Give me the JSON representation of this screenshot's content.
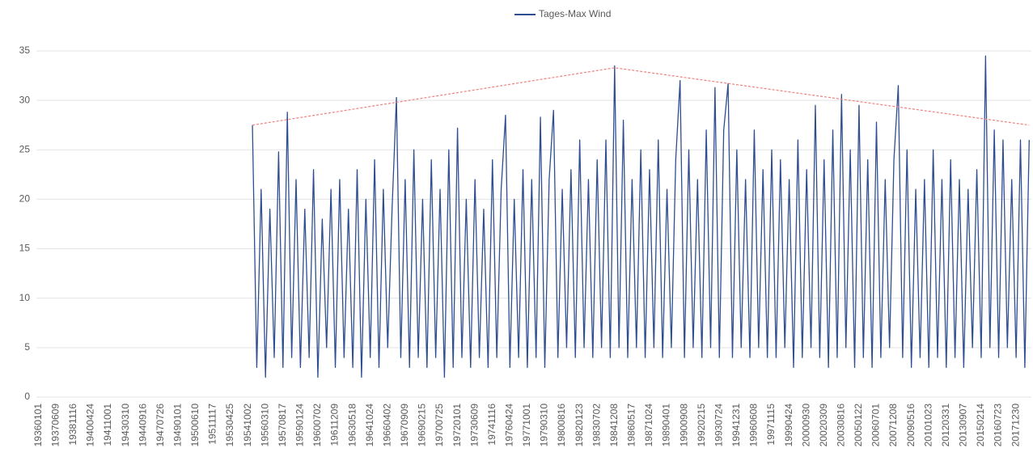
{
  "chart_data": {
    "type": "line",
    "categories": [
      "19360101",
      null,
      null,
      null,
      "19370609",
      null,
      null,
      null,
      "19381116",
      null,
      null,
      null,
      "19400424",
      null,
      null,
      null,
      "19411001",
      null,
      null,
      null,
      "19430310",
      null,
      null,
      null,
      "19440916",
      null,
      null,
      null,
      "19470726",
      null,
      null,
      null,
      "19490101",
      null,
      null,
      null,
      "19500610",
      null,
      null,
      null,
      "19511117",
      null,
      null,
      null,
      "19530425",
      null,
      null,
      null,
      "19541002",
      null,
      null,
      null,
      "19560310",
      null,
      null,
      null,
      "19570817",
      null,
      null,
      null,
      "19590124",
      null,
      null,
      null,
      "19600702",
      null,
      null,
      null,
      "19611209",
      null,
      null,
      null,
      "19630518",
      null,
      null,
      null,
      "19641024",
      null,
      null,
      null,
      "19660402",
      null,
      null,
      null,
      "19670909",
      null,
      null,
      null,
      "19690215",
      null,
      null,
      null,
      "19700725",
      null,
      null,
      null,
      "19720101",
      null,
      null,
      null,
      "19730609",
      null,
      null,
      null,
      "19741116",
      null,
      null,
      null,
      "19760424",
      null,
      null,
      null,
      "19771001",
      null,
      null,
      null,
      "19790310",
      null,
      null,
      null,
      "19800816",
      null,
      null,
      null,
      "19820123",
      null,
      null,
      null,
      "19830702",
      null,
      null,
      null,
      "19841208",
      null,
      null,
      null,
      "19860517",
      null,
      null,
      null,
      "19871024",
      null,
      null,
      null,
      "19890401",
      null,
      null,
      null,
      "19900908",
      null,
      null,
      null,
      "19920215",
      null,
      null,
      null,
      "19930724",
      null,
      null,
      null,
      "19941231",
      null,
      null,
      null,
      "19960608",
      null,
      null,
      null,
      "19971115",
      null,
      null,
      null,
      "19990424",
      null,
      null,
      null,
      "20000930",
      null,
      null,
      null,
      "20020309",
      null,
      null,
      null,
      "20030816",
      null,
      null,
      null,
      "20050122",
      null,
      null,
      null,
      "20060701",
      null,
      null,
      null,
      "20071208",
      null,
      null,
      null,
      "20090516",
      null,
      null,
      null,
      "20101023",
      null,
      null,
      null,
      "20120331",
      null,
      null,
      null,
      "20130907",
      null,
      null,
      null,
      "20150214",
      null,
      null,
      null,
      "20160723",
      null,
      null,
      null,
      "20171230",
      null,
      null,
      null
    ],
    "series": [
      {
        "name": "Tages-Max Wind",
        "color": "#2e4e8f",
        "values": [
          null,
          null,
          null,
          null,
          null,
          null,
          null,
          null,
          null,
          null,
          null,
          null,
          null,
          null,
          null,
          null,
          null,
          null,
          null,
          null,
          null,
          null,
          null,
          null,
          null,
          null,
          null,
          null,
          null,
          null,
          null,
          null,
          null,
          null,
          null,
          null,
          null,
          null,
          null,
          null,
          null,
          null,
          null,
          null,
          null,
          null,
          null,
          null,
          null,
          27.5,
          3,
          21,
          2,
          19,
          4,
          24.8,
          3,
          28.8,
          4,
          22,
          3,
          19,
          4,
          23,
          2,
          18,
          5,
          21,
          3,
          22,
          4,
          19,
          3,
          23,
          2,
          20,
          4,
          24,
          3,
          21,
          5,
          19,
          30.3,
          4,
          22,
          3,
          25,
          4,
          20,
          3,
          24,
          4,
          21,
          2,
          25,
          3,
          27.2,
          4,
          20,
          3,
          22,
          4,
          19,
          3,
          24,
          4,
          21,
          28.5,
          3,
          20,
          4,
          23,
          3,
          22,
          4,
          28.3,
          3,
          22,
          29,
          4,
          21,
          5,
          23,
          4,
          26,
          5,
          22,
          4,
          24,
          5,
          26,
          4,
          33.5,
          5,
          28,
          4,
          22,
          5,
          25,
          4,
          23,
          5,
          26,
          4,
          21,
          5,
          24,
          32,
          4,
          25,
          5,
          22,
          4,
          27,
          5,
          31.3,
          4,
          27,
          31.7,
          4,
          25,
          5,
          22,
          4,
          27,
          5,
          23,
          4,
          25,
          4,
          24,
          5,
          22,
          3,
          26,
          4,
          23,
          5,
          29.5,
          4,
          24,
          3,
          27,
          4,
          30.6,
          5,
          25,
          3,
          29.5,
          4,
          24,
          3,
          27.8,
          4,
          22,
          5,
          24,
          31.5,
          4,
          25,
          3,
          21,
          4,
          22,
          3,
          25,
          4,
          22,
          3,
          24,
          4,
          22,
          3,
          21,
          5,
          23,
          4,
          34.5,
          5,
          27,
          4,
          26,
          5,
          22,
          4,
          26,
          3,
          26
        ]
      }
    ],
    "envelope": {
      "color": "#f08080",
      "points": [
        [
          49,
          27.5
        ],
        [
          132,
          33.3
        ],
        [
          227,
          27.5
        ]
      ]
    },
    "ylim": [
      0,
      35
    ],
    "yticks": [
      0,
      5,
      10,
      15,
      20,
      25,
      30,
      35
    ],
    "grid": true,
    "legend": "top"
  }
}
